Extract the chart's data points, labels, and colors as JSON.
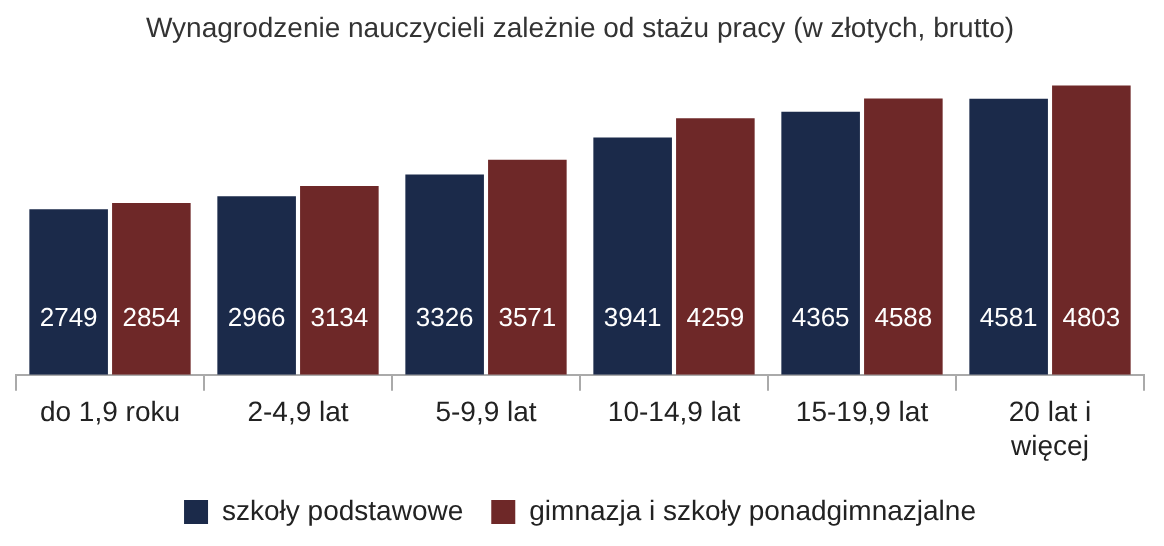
{
  "chart_data": {
    "type": "bar",
    "title": "Wynagrodzenie nauczycieli zależnie od stażu pracy (w złotych, brutto)",
    "categories": [
      "do 1,9 roku",
      "2-4,9 lat",
      "5-9,9 lat",
      "10-14,9 lat",
      "15-19,9 lat",
      "20 lat i więcej"
    ],
    "series": [
      {
        "name": "szkoły podstawowe",
        "color": "#1b2a4a",
        "values": [
          2749,
          2966,
          3326,
          3941,
          4365,
          4581
        ]
      },
      {
        "name": "gimnazja i szkoły ponadgimnazjalne",
        "color": "#6e2828",
        "values": [
          2854,
          3134,
          3571,
          4259,
          4588,
          4803
        ]
      }
    ],
    "data_labels": true,
    "legend": "bottom"
  }
}
